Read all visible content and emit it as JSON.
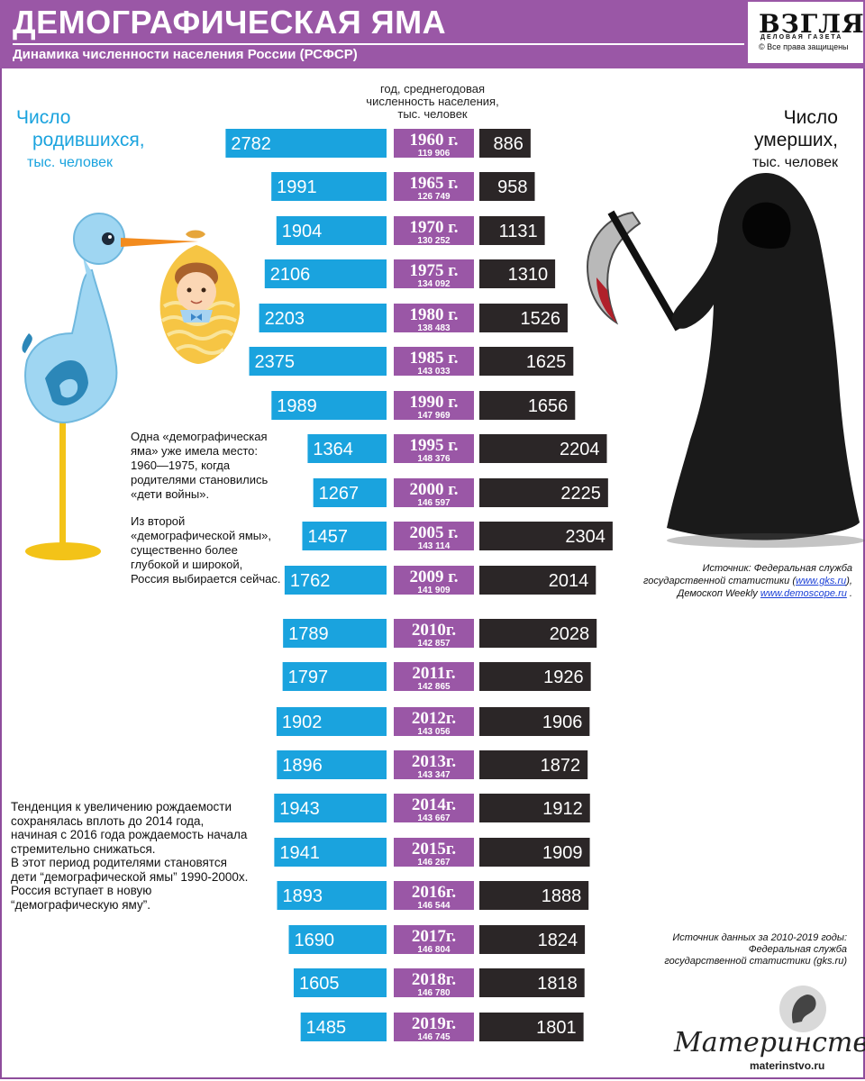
{
  "header": {
    "title": "ДЕМОГРАФИЧЕСКАЯ ЯМА",
    "subtitle": "Динамика численности населения России (РСФСР)"
  },
  "logo": {
    "name": "ВЗГЛЯД",
    "tagline": "ДЕЛОВАЯ ГАЗЕТА",
    "rights": "© Все права защищены"
  },
  "labels": {
    "births_l1": "Число",
    "births_l2": "родившихся,",
    "births_l3": "тыс. человек",
    "year_l1": "год, среднегодовая",
    "year_l2": "численность населения,",
    "year_l3": "тыс. человек",
    "deaths_l1": "Число",
    "deaths_l2": "умерших,",
    "deaths_l3": "тыс. человек"
  },
  "notes": {
    "n1_l1": "Одна «демографическая",
    "n1_l2": "яма» уже имела место:",
    "n1_l3": "1960—1975, когда",
    "n1_l4": "родителями становились",
    "n1_l5": "«дети войны».",
    "n2_l1": "Из второй",
    "n2_l2": "«демографической ямы»,",
    "n2_l3": "существенно более",
    "n2_l4": "глубокой и широкой,",
    "n2_l5": "Россия выбирается сейчас.",
    "n3_l1": "Тенденция к увеличению рождаемости",
    "n3_l2": "сохранялась вплоть до 2014 года,",
    "n3_l3": "начиная с 2016 года рождаемость начала",
    "n3_l4": "стремительно снижаться.",
    "n3_l5": "В этот период родителями становятся",
    "n3_l6": "дети “демографической ямы” 1990-2000х.",
    "n3_l7": "Россия вступает в новую",
    "n3_l8": "“демографическую яму”."
  },
  "sources": {
    "s1_l1": "Источник: Федеральная служба",
    "s1_l2a": "государственной статистики (",
    "s1_l2link": "www.gks.ru",
    "s1_l2b": "),",
    "s1_l3a": "Демоскоп Weekly ",
    "s1_l3link": "www.demoscope.ru",
    "s1_l3b": " .",
    "s2_l1": "Источник данных за 2010-2019 годы:",
    "s2_l2": "Федеральная служба",
    "s2_l3": "государственной статистики (gks.ru)"
  },
  "watermark": {
    "name": "Материнство",
    "url": "materinstvo.ru"
  },
  "colors": {
    "header": "#9a57a6",
    "births": "#1aa3de",
    "year_box": "#9a57a6",
    "deaths": "#2b2627"
  },
  "chart_data": {
    "type": "bar",
    "series": [
      {
        "name": "Число родившихся, тыс. человек",
        "values": [
          2782,
          1991,
          1904,
          2106,
          2203,
          2375,
          1989,
          1364,
          1267,
          1457,
          1762,
          1789,
          1797,
          1902,
          1896,
          1943,
          1941,
          1893,
          1690,
          1605,
          1485
        ]
      },
      {
        "name": "Число умерших, тыс. человек",
        "values": [
          886,
          958,
          1131,
          1310,
          1526,
          1625,
          1656,
          2204,
          2225,
          2304,
          2014,
          2028,
          1926,
          1906,
          1872,
          1912,
          1909,
          1888,
          1824,
          1818,
          1801
        ]
      }
    ],
    "categories": [
      "1960 г.",
      "1965 г.",
      "1970 г.",
      "1975 г.",
      "1980 г.",
      "1985 г.",
      "1990 г.",
      "1995 г.",
      "2000 г.",
      "2005 г.",
      "2009 г.",
      "2010г.",
      "2011г.",
      "2012г.",
      "2013г.",
      "2014г.",
      "2015г.",
      "2016г.",
      "2017г.",
      "2018г.",
      "2019г."
    ],
    "population": [
      "119 906",
      "126 749",
      "130 252",
      "134 092",
      "138 483",
      "143 033",
      "147 969",
      "148 376",
      "146 597",
      "143 114",
      "141 909",
      "142 857",
      "142 865",
      "143 056",
      "143 347",
      "143 667",
      "146 267",
      "146 544",
      "146 804",
      "146 780",
      "146 745"
    ]
  }
}
